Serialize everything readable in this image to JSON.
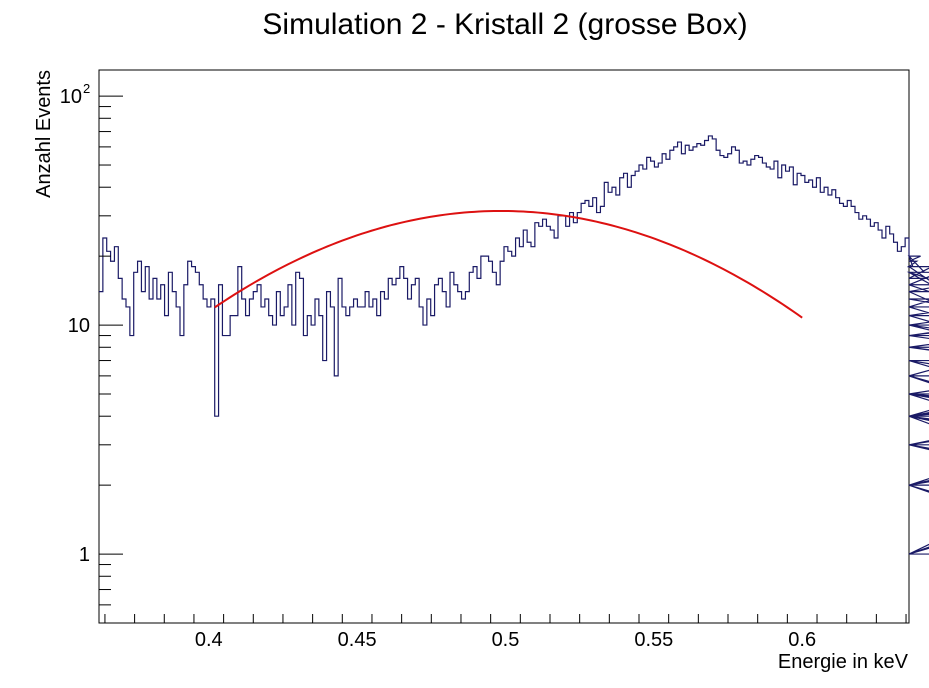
{
  "chart_data": {
    "type": "histogram",
    "title": "Simulation 2 - Kristall 2 (grosse Box)",
    "xlabel": "Energie in keV",
    "ylabel": "Anzahl Events",
    "xlim": [
      0.363,
      0.636
    ],
    "ylim": [
      0.5,
      130
    ],
    "yscale": "log",
    "grid": false,
    "legend": "none",
    "x_ticks": [
      "0.4",
      "0.45",
      "0.5",
      "0.55",
      "0.6"
    ],
    "x_tick_values": [
      0.4,
      0.45,
      0.5,
      0.55,
      0.6
    ],
    "y_ticks": [
      {
        "value": 1,
        "base": "1",
        "exp": ""
      },
      {
        "value": 10,
        "base": "10",
        "exp": ""
      },
      {
        "value": 100,
        "base": "10",
        "exp": "2"
      }
    ],
    "histogram": {
      "bin_start": 0.363,
      "bin_width": 0.0013,
      "counts": [
        14,
        24,
        21,
        19,
        22,
        16,
        13,
        12,
        9,
        17,
        19,
        14,
        18,
        13,
        16,
        13,
        15,
        11,
        17,
        14,
        12,
        9,
        15,
        19,
        18,
        17,
        15,
        13,
        12,
        13,
        4,
        15,
        9,
        9,
        11,
        11,
        18,
        13,
        11,
        13,
        14,
        15,
        12,
        13,
        11,
        10,
        14,
        11,
        12,
        15,
        10,
        17,
        16,
        9,
        11,
        10,
        13,
        11,
        7,
        14,
        12,
        6,
        16,
        12,
        11,
        12,
        13,
        12,
        12,
        14,
        12,
        13,
        11,
        14,
        13,
        16,
        15,
        16,
        18,
        16,
        13,
        15,
        16,
        12,
        10,
        13,
        11,
        15,
        16,
        14,
        12,
        17,
        15,
        14,
        13,
        14,
        17,
        18,
        16,
        20,
        20,
        19,
        17,
        15,
        19,
        22,
        21,
        20,
        24,
        22,
        26,
        23,
        22,
        28,
        27,
        29,
        27,
        26,
        24,
        30,
        30,
        27,
        31,
        28,
        31,
        34,
        35,
        33,
        36,
        31,
        33,
        42,
        38,
        40,
        37,
        44,
        46,
        40,
        45,
        47,
        50,
        48,
        54,
        52,
        49,
        51,
        56,
        53,
        58,
        60,
        63,
        56,
        61,
        58,
        60,
        62,
        61,
        64,
        67,
        65,
        58,
        55,
        54,
        56,
        60,
        58,
        51,
        52,
        50,
        53,
        55,
        54,
        51,
        49,
        48,
        52,
        44,
        50,
        47,
        49,
        41,
        46,
        45,
        42,
        43,
        40,
        44,
        38,
        40,
        37,
        39,
        36,
        34,
        33,
        35,
        33,
        31,
        29,
        30,
        29,
        27,
        28,
        26,
        24,
        27,
        25,
        23,
        21,
        22,
        24,
        20,
        18,
        19,
        20,
        17,
        16,
        18,
        15,
        17,
        14,
        15,
        13,
        12,
        14,
        11,
        12,
        10,
        11,
        9,
        10,
        9,
        8,
        9,
        10,
        8,
        7,
        6,
        8,
        7,
        5,
        6,
        4,
        5,
        5,
        4,
        3,
        4,
        6,
        4,
        5,
        4,
        5,
        3,
        4,
        3,
        2,
        3,
        4,
        2,
        3,
        2,
        1,
        2,
        3,
        2,
        4,
        3,
        2,
        1,
        3,
        2,
        1,
        2,
        3,
        5,
        4,
        5
      ],
      "line_color": "#1a1a66"
    },
    "fit": {
      "type": "gaussian",
      "x_range": [
        0.402,
        0.6
      ],
      "amplitude": 31.5,
      "mean": 0.4985,
      "sigma": 0.0693,
      "color": "#dd1111"
    }
  }
}
